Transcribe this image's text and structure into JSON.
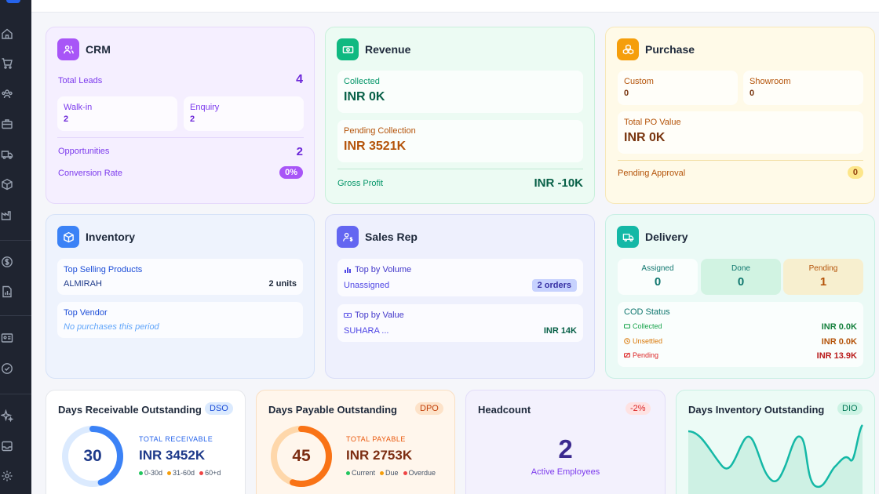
{
  "crm": {
    "title": "CRM",
    "total_leads_label": "Total Leads",
    "total_leads_value": "4",
    "walkin_label": "Walk-in",
    "walkin_value": "2",
    "enquiry_label": "Enquiry",
    "enquiry_value": "2",
    "opportunities_label": "Opportunities",
    "opportunities_value": "2",
    "conversion_label": "Conversion Rate",
    "conversion_value": "0%"
  },
  "revenue": {
    "title": "Revenue",
    "collected_label": "Collected",
    "collected_value": "INR 0K",
    "pending_label": "Pending Collection",
    "pending_value": "INR 3521K",
    "gross_label": "Gross Profit",
    "gross_value": "INR -10K"
  },
  "purchase": {
    "title": "Purchase",
    "custom_label": "Custom",
    "custom_value": "0",
    "showroom_label": "Showroom",
    "showroom_value": "0",
    "po_label": "Total PO Value",
    "po_value": "INR 0K",
    "approval_label": "Pending Approval",
    "approval_value": "0"
  },
  "inventory": {
    "title": "Inventory",
    "top_selling_label": "Top Selling Products",
    "top_selling_item": "ALMIRAH",
    "top_selling_qty": "2 units",
    "top_vendor_label": "Top Vendor",
    "top_vendor_value": "No purchases this period"
  },
  "sales_rep": {
    "title": "Sales Rep",
    "volume_label": "Top by Volume",
    "volume_name": "Unassigned",
    "volume_value": "2 orders",
    "value_label": "Top by Value",
    "value_name": "SUHARA ...",
    "value_value": "INR 14K"
  },
  "delivery": {
    "title": "Delivery",
    "assigned_label": "Assigned",
    "assigned_value": "0",
    "done_label": "Done",
    "done_value": "0",
    "pending_label": "Pending",
    "pending_value": "1",
    "cod_label": "COD Status",
    "collected_label": "Collected",
    "collected_value": "INR 0.0K",
    "unsettled_label": "Unsettled",
    "unsettled_value": "INR 0.0K",
    "cod_pending_label": "Pending",
    "cod_pending_value": "INR 13.9K"
  },
  "dso": {
    "title": "Days Receivable Outstanding",
    "tag": "DSO",
    "days": "30",
    "ring_fraction": 0.45,
    "total_label": "TOTAL RECEIVABLE",
    "total_value": "INR 3452K",
    "legend": [
      "0-30d",
      "31-60d",
      "60+d"
    ]
  },
  "dpo": {
    "title": "Days Payable Outstanding",
    "tag": "DPO",
    "days": "45",
    "ring_fraction": 0.55,
    "total_label": "TOTAL PAYABLE",
    "total_value": "INR 2753K",
    "legend": [
      "Current",
      "Due",
      "Overdue"
    ]
  },
  "headcount": {
    "title": "Headcount",
    "tag": "-2%",
    "value": "2",
    "label": "Active Employees"
  },
  "dio": {
    "title": "Days Inventory Outstanding",
    "tag": "DIO"
  },
  "colors": {
    "crm_accent": "#a855f7",
    "revenue_accent": "#10b981",
    "purchase_accent": "#f59e0b",
    "inventory_accent": "#3b82f6",
    "sales_accent": "#6366f1",
    "delivery_accent": "#14b8a6"
  }
}
